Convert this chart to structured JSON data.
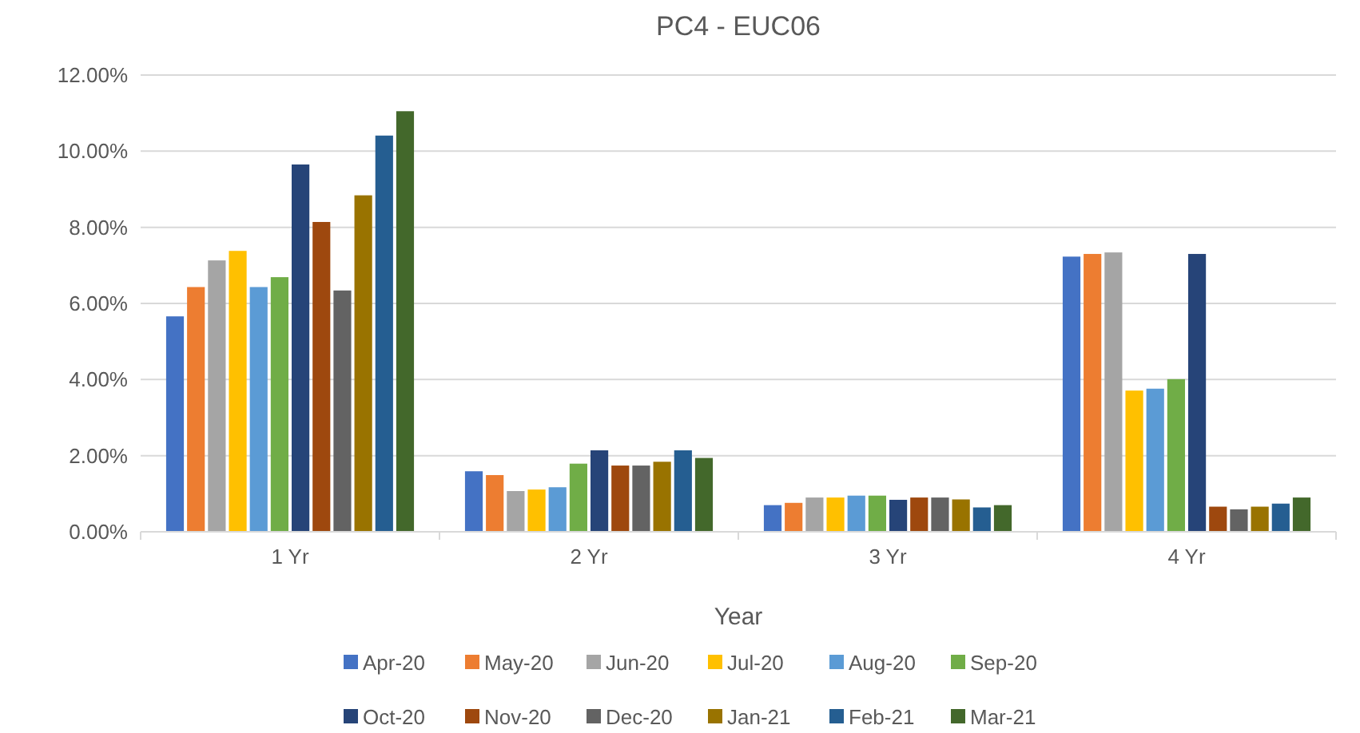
{
  "chart_data": {
    "type": "bar",
    "title": "PC4 - EUC06",
    "xlabel": "Year",
    "categories": [
      "1 Yr",
      "2 Yr",
      "3 Yr",
      "4 Yr"
    ],
    "series": [
      {
        "name": "Apr-20",
        "color": "#4472c4",
        "values": [
          5.66,
          1.59,
          0.7,
          7.23
        ]
      },
      {
        "name": "May-20",
        "color": "#ed7d31",
        "values": [
          6.43,
          1.49,
          0.76,
          7.3
        ]
      },
      {
        "name": "Jun-20",
        "color": "#a5a5a5",
        "values": [
          7.13,
          1.07,
          0.9,
          7.34
        ]
      },
      {
        "name": "Jul-20",
        "color": "#ffc000",
        "values": [
          7.38,
          1.11,
          0.9,
          3.71
        ]
      },
      {
        "name": "Aug-20",
        "color": "#5b9bd5",
        "values": [
          6.43,
          1.17,
          0.95,
          3.76
        ]
      },
      {
        "name": "Sep-20",
        "color": "#70ad47",
        "values": [
          6.69,
          1.79,
          0.95,
          4.01
        ]
      },
      {
        "name": "Oct-20",
        "color": "#264478",
        "values": [
          9.65,
          2.14,
          0.84,
          7.3
        ]
      },
      {
        "name": "Nov-20",
        "color": "#9e480e",
        "values": [
          8.14,
          1.74,
          0.9,
          0.66
        ]
      },
      {
        "name": "Dec-20",
        "color": "#636363",
        "values": [
          6.34,
          1.74,
          0.9,
          0.59
        ]
      },
      {
        "name": "Jan-21",
        "color": "#997300",
        "values": [
          8.84,
          1.84,
          0.85,
          0.66
        ]
      },
      {
        "name": "Feb-21",
        "color": "#255e91",
        "values": [
          10.41,
          2.14,
          0.64,
          0.74
        ]
      },
      {
        "name": "Mar-21",
        "color": "#43682b",
        "values": [
          11.05,
          1.94,
          0.7,
          0.9
        ]
      }
    ],
    "ylim": [
      0,
      12
    ],
    "yticks": [
      {
        "value": 0,
        "label": "0.00%"
      },
      {
        "value": 2,
        "label": "2.00%"
      },
      {
        "value": 4,
        "label": "4.00%"
      },
      {
        "value": 6,
        "label": "6.00%"
      },
      {
        "value": 8,
        "label": "8.00%"
      },
      {
        "value": 10,
        "label": "10.00%"
      },
      {
        "value": 12,
        "label": "12.00%"
      }
    ],
    "grid": "y",
    "legend": "bottom"
  }
}
